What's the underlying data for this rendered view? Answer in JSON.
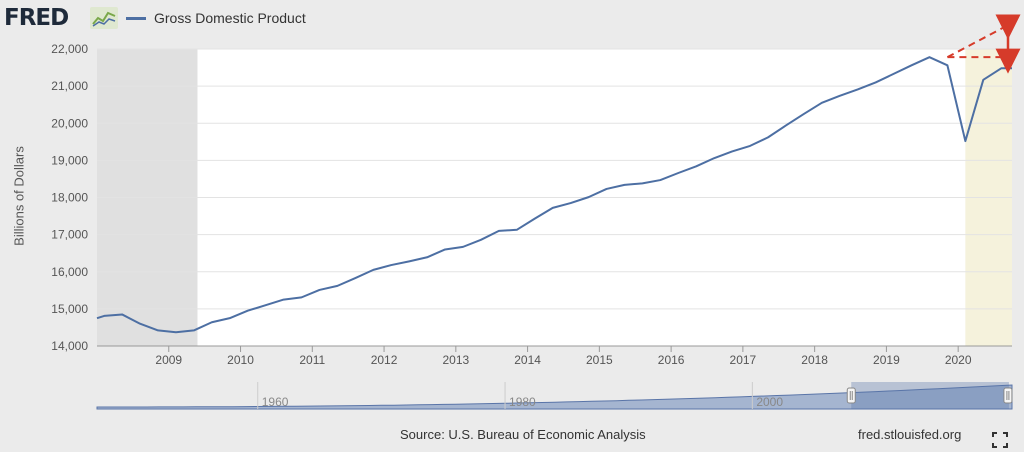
{
  "brand": {
    "logo_text": "FRED"
  },
  "colors": {
    "series": "#4d6fa3",
    "recession": "#e0e0e0",
    "projection": "#f5f2dc",
    "annotation": "#d63b2a",
    "navigator_fill": "#8ea3c7"
  },
  "chart_data": {
    "type": "line",
    "title": "Gross Domestic Product",
    "ylabel": "Billions of Dollars",
    "xlabel": "",
    "ylim": [
      14000,
      22000
    ],
    "xlim": [
      2008.0,
      2020.75
    ],
    "yticks": [
      14000,
      15000,
      16000,
      17000,
      18000,
      19000,
      20000,
      21000,
      22000
    ],
    "ytick_labels": [
      "14,000",
      "15,000",
      "16,000",
      "17,000",
      "18,000",
      "19,000",
      "20,000",
      "21,000",
      "22,000"
    ],
    "xticks": [
      2009,
      2010,
      2011,
      2012,
      2013,
      2014,
      2015,
      2016,
      2017,
      2018,
      2019,
      2020
    ],
    "xtick_labels": [
      "2009",
      "2010",
      "2011",
      "2012",
      "2013",
      "2014",
      "2015",
      "2016",
      "2017",
      "2018",
      "2019",
      "2020"
    ],
    "grid": true,
    "legend": "top-left",
    "recession_shading": [
      2008.0,
      2009.4
    ],
    "highlight_shading": [
      2020.1,
      2020.75
    ],
    "series": [
      {
        "name": "Gross Domestic Product",
        "x": [
          2008.0,
          2008.1,
          2008.35,
          2008.6,
          2008.85,
          2009.1,
          2009.35,
          2009.6,
          2009.85,
          2010.1,
          2010.35,
          2010.6,
          2010.85,
          2011.1,
          2011.35,
          2011.6,
          2011.85,
          2012.1,
          2012.35,
          2012.6,
          2012.85,
          2013.1,
          2013.35,
          2013.6,
          2013.85,
          2014.1,
          2014.35,
          2014.6,
          2014.85,
          2015.1,
          2015.35,
          2015.6,
          2015.85,
          2016.1,
          2016.35,
          2016.6,
          2016.85,
          2017.1,
          2017.35,
          2017.6,
          2017.85,
          2018.1,
          2018.35,
          2018.6,
          2018.85,
          2019.1,
          2019.35,
          2019.6,
          2019.85,
          2020.1,
          2020.35,
          2020.6,
          2020.75
        ],
        "values": [
          14750,
          14810,
          14850,
          14600,
          14420,
          14370,
          14420,
          14640,
          14750,
          14950,
          15100,
          15250,
          15310,
          15510,
          15620,
          15830,
          16050,
          16180,
          16280,
          16390,
          16600,
          16670,
          16860,
          17100,
          17130,
          17430,
          17720,
          17850,
          18010,
          18230,
          18340,
          18380,
          18470,
          18660,
          18840,
          19060,
          19240,
          19390,
          19620,
          19940,
          20250,
          20550,
          20740,
          20910,
          21100,
          21330,
          21560,
          21780,
          21560,
          19520,
          21170,
          21480,
          21480
        ]
      }
    ],
    "annotations": [
      {
        "kind": "trend-extension",
        "from": [
          2019.85,
          21780
        ],
        "to": [
          2020.75,
          22700
        ]
      },
      {
        "kind": "flat-line",
        "from": [
          2019.85,
          21780
        ],
        "to": [
          2020.75,
          21780
        ]
      },
      {
        "kind": "double-arrow",
        "from": [
          2020.75,
          22700
        ],
        "to": [
          2020.75,
          21780
        ]
      }
    ],
    "navigator": {
      "tick_labels": [
        "1960",
        "1980",
        "2000"
      ],
      "tick_years": [
        1960,
        1980,
        2000
      ],
      "range": [
        1947,
        2021
      ],
      "selected": [
        2008,
        2020.75
      ]
    }
  },
  "footer": {
    "source": "Source: U.S. Bureau of Economic Analysis",
    "site": "fred.stlouisfed.org"
  }
}
